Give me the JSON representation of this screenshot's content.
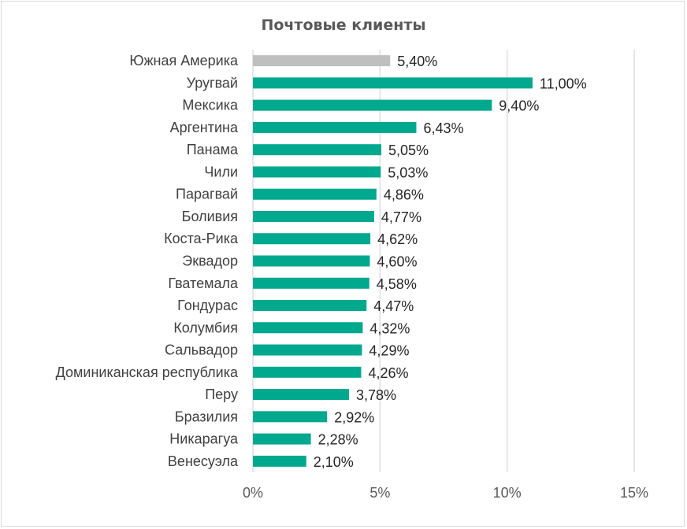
{
  "chart_data": {
    "type": "bar",
    "orientation": "horizontal",
    "title": "Почтовые клиенты",
    "xlabel": "",
    "ylabel": "",
    "xlim": [
      0,
      0.15
    ],
    "x_ticks": [
      "0%",
      "5%",
      "10%",
      "15%"
    ],
    "grid": true,
    "legend": "none",
    "categories": [
      "Южная Америка",
      "Уругвай",
      "Мексика",
      "Аргентина",
      "Панама",
      "Чили",
      "Парагвай",
      "Боливия",
      "Коста-Рика",
      "Эквадор",
      "Гватемала",
      "Гондурас",
      "Колумбия",
      "Сальвадор",
      "Доминиканская республика",
      "Перу",
      "Бразилия",
      "Никарагуа",
      "Венесуэла"
    ],
    "values": [
      0.054,
      0.11,
      0.094,
      0.0643,
      0.0505,
      0.0503,
      0.0486,
      0.0477,
      0.0462,
      0.046,
      0.0458,
      0.0447,
      0.0432,
      0.0429,
      0.0426,
      0.0378,
      0.0292,
      0.0228,
      0.021
    ],
    "value_labels": [
      "5,40%",
      "11,00%",
      "9,40%",
      "6,43%",
      "5,05%",
      "5,03%",
      "4,86%",
      "4,77%",
      "4,62%",
      "4,60%",
      "4,58%",
      "4,47%",
      "4,32%",
      "4,29%",
      "4,26%",
      "3,78%",
      "2,92%",
      "2,28%",
      "2,10%"
    ],
    "colors": {
      "highlight_bar": "#bfbfbf",
      "bar": "#00a88e",
      "gridline": "#d9d9d9"
    }
  }
}
